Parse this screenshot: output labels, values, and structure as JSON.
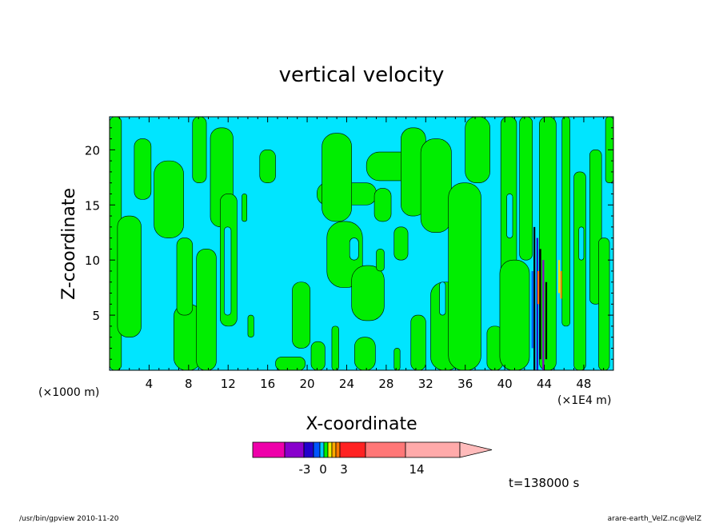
{
  "chart_data": {
    "type": "heatmap",
    "subtype": "filled-contour",
    "title": "vertical velocity",
    "xlabel": "X-coordinate",
    "ylabel": "Z-coordinate",
    "x_unit_left": "(×1000 m)",
    "x_unit_right": "(×1E4 m)",
    "xticks": [
      4,
      8,
      12,
      16,
      20,
      24,
      28,
      32,
      36,
      40,
      44,
      48
    ],
    "yticks": [
      5,
      10,
      15,
      20
    ],
    "xlim": [
      0,
      51
    ],
    "ylim": [
      0,
      23
    ],
    "grid": false,
    "background_level_color": "#00e5ff",
    "positive_level_color": "#00ee00",
    "colorbar": {
      "tick_labels": [
        "-3",
        "0",
        "3",
        "14"
      ],
      "tick_values": [
        -3,
        0,
        3,
        14
      ],
      "colors": [
        "#ee00aa",
        "#8800cc",
        "#2200cc",
        "#0055ff",
        "#00ccff",
        "#00ee00",
        "#eeee00",
        "#ffaa00",
        "#ff7700",
        "#ff2222",
        "#ff7777",
        "#ffaaaa"
      ]
    },
    "annotation": "t=138000 s"
  },
  "footer": {
    "left": "/usr/bin/gpview   2010-11-20",
    "right": "arare-earth_VelZ.nc@VelZ"
  }
}
